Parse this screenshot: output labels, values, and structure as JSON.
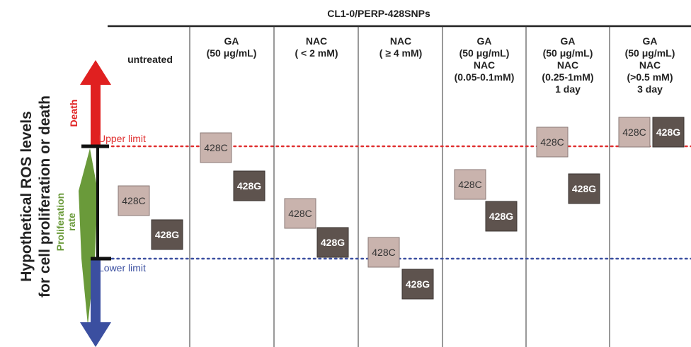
{
  "title": "CL1-0/PERP-428SNPs",
  "y_axis": {
    "title_line1": "Hypothetical ROS levels",
    "title_line2": "for cell proliferation or death",
    "death_label": "Death",
    "proliferation_label_line1": "Proliferation",
    "proliferation_label_line2": "rate",
    "upper_limit_label": "Upper limit",
    "lower_limit_label": "Lower limit"
  },
  "columns": [
    {
      "header": [
        "untreated"
      ],
      "c_label": "428C",
      "g_label": "428G"
    },
    {
      "header": [
        "GA",
        "(50 μg/mL)"
      ],
      "c_label": "428C",
      "g_label": "428G"
    },
    {
      "header": [
        "NAC",
        "( < 2 mM)"
      ],
      "c_label": "428C",
      "g_label": "428G"
    },
    {
      "header": [
        "NAC",
        "( ≥ 4 mM)"
      ],
      "c_label": "428C",
      "g_label": "428G"
    },
    {
      "header": [
        "GA",
        "(50 μg/mL)",
        "NAC",
        "(0.05-0.1mM)"
      ],
      "c_label": "428C",
      "g_label": "428G"
    },
    {
      "header": [
        "GA",
        "(50 μg/mL)",
        "NAC",
        "(0.25-1mM)",
        "1 day"
      ],
      "c_label": "428C",
      "g_label": "428G"
    },
    {
      "header": [
        "GA",
        "(50 μg/mL)",
        "NAC",
        "(>0.5 mM)",
        "3 day"
      ],
      "c_label": "428C",
      "g_label": "428G"
    }
  ],
  "colors": {
    "death_arrow": "#e02020",
    "proliferation": "#6a9a3a",
    "lower_arrow": "#3b4fa0",
    "upper_line": "#e03030",
    "lower_line": "#3b4fa0",
    "c_box": "#c9b3ad",
    "g_box": "#5e534e"
  }
}
